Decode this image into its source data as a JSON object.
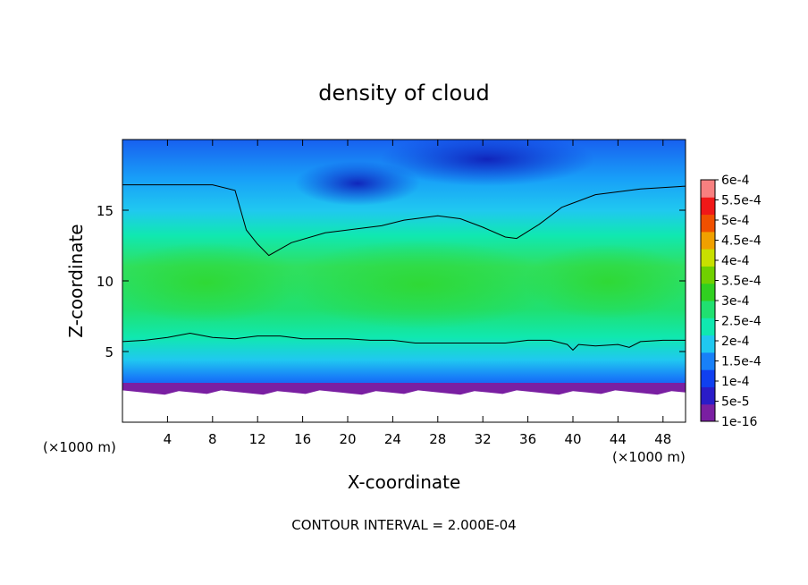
{
  "chart_data": {
    "type": "heatmap",
    "title": "density of cloud",
    "xlabel": "X-coordinate",
    "ylabel": "Z-coordinate",
    "x_unit": "(×1000 m)",
    "y_unit": "(×1000 m)",
    "xlim": [
      0,
      50
    ],
    "ylim": [
      0,
      20
    ],
    "x_ticks": [
      4,
      8,
      12,
      16,
      20,
      24,
      28,
      32,
      36,
      40,
      44,
      48
    ],
    "y_ticks": [
      5,
      10,
      15
    ],
    "footer": "CONTOUR INTERVAL = 2.000E-04",
    "colorbar": {
      "labels": [
        "1e-16",
        "5e-5",
        "1e-4",
        "1.5e-4",
        "2e-4",
        "2.5e-4",
        "3e-4",
        "3.5e-4",
        "4e-4",
        "4.5e-4",
        "5e-4",
        "5.5e-4",
        "6e-4"
      ],
      "values": [
        0,
        5e-05,
        0.0001,
        0.00015,
        0.0002,
        0.00025,
        0.0003,
        0.00035,
        0.0004,
        0.00045,
        0.0005,
        0.00055,
        0.0006
      ],
      "colors": [
        "#7a1fa2",
        "#2a1cc8",
        "#1040f0",
        "#1880f8",
        "#20c8f0",
        "#10e8b0",
        "#20e070",
        "#30d020",
        "#70d000",
        "#c8e000",
        "#f0a000",
        "#f05000",
        "#f01818",
        "#f88080"
      ]
    },
    "contour_2e-4": {
      "upper": {
        "x": [
          0,
          4,
          8,
          10,
          10.5,
          11,
          12,
          13,
          15,
          18,
          21,
          23,
          25,
          28,
          30,
          32,
          34,
          35,
          37,
          39,
          42,
          46,
          50
        ],
        "z": [
          16.8,
          16.8,
          16.8,
          16.4,
          15.0,
          13.6,
          12.6,
          11.8,
          12.7,
          13.4,
          13.7,
          13.9,
          14.3,
          14.6,
          14.4,
          13.8,
          13.1,
          13.0,
          14.0,
          15.2,
          16.1,
          16.5,
          16.7
        ]
      },
      "lower": {
        "x": [
          0,
          2,
          4,
          6,
          8,
          10,
          12,
          14,
          16,
          18,
          20,
          22,
          24,
          26,
          28,
          30,
          32,
          34,
          36,
          38,
          39.5,
          40,
          40.5,
          42,
          44,
          45,
          46,
          48,
          50
        ],
        "z": [
          5.7,
          5.8,
          6.0,
          6.3,
          6.0,
          5.9,
          6.1,
          6.1,
          5.9,
          5.9,
          5.9,
          5.8,
          5.8,
          5.6,
          5.6,
          5.6,
          5.6,
          5.6,
          5.8,
          5.8,
          5.5,
          5.1,
          5.5,
          5.4,
          5.5,
          5.3,
          5.7,
          5.8,
          5.8
        ]
      }
    },
    "cloud_base_z": 2.1
  }
}
